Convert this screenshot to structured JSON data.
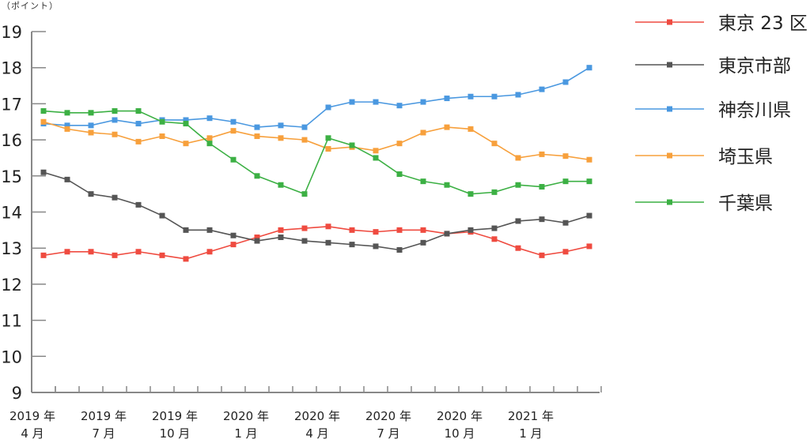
{
  "chart_data": {
    "type": "line",
    "ylabel": "（ポイント）",
    "ylim": [
      9,
      19
    ],
    "yticks": [
      "9",
      "10",
      "11",
      "12",
      "13",
      "14",
      "15",
      "16",
      "17",
      "18",
      "19"
    ],
    "x": [
      "2019-04",
      "2019-05",
      "2019-06",
      "2019-07",
      "2019-08",
      "2019-09",
      "2019-10",
      "2019-11",
      "2019-12",
      "2020-01",
      "2020-02",
      "2020-03",
      "2020-04",
      "2020-05",
      "2020-06",
      "2020-07",
      "2020-08",
      "2020-09",
      "2020-10",
      "2020-11",
      "2020-12",
      "2021-01",
      "2021-02",
      "2021-03"
    ],
    "xtick_labels": [
      {
        "index": 0,
        "line1": "2019 年",
        "line2": "4 月"
      },
      {
        "index": 3,
        "line1": "2019 年",
        "line2": "7 月"
      },
      {
        "index": 6,
        "line1": "2019 年",
        "line2": "10 月"
      },
      {
        "index": 9,
        "line1": "2020 年",
        "line2": "1 月"
      },
      {
        "index": 12,
        "line1": "2020 年",
        "line2": "4 月"
      },
      {
        "index": 15,
        "line1": "2020 年",
        "line2": "7 月"
      },
      {
        "index": 18,
        "line1": "2020 年",
        "line2": "10 月"
      },
      {
        "index": 21,
        "line1": "2021 年",
        "line2": "1 月"
      }
    ],
    "legend_position": "right",
    "series": [
      {
        "name": "東京 23 区",
        "color": "#ef4b40",
        "values": [
          12.8,
          12.9,
          12.9,
          12.8,
          12.9,
          12.8,
          12.7,
          12.9,
          13.1,
          13.3,
          13.5,
          13.55,
          13.6,
          13.5,
          13.45,
          13.5,
          13.5,
          13.4,
          13.45,
          13.25,
          13.0,
          12.8,
          12.9,
          13.05
        ]
      },
      {
        "name": "東京市部",
        "color": "#555555",
        "values": [
          15.1,
          14.9,
          14.5,
          14.4,
          14.2,
          13.9,
          13.5,
          13.5,
          13.35,
          13.2,
          13.3,
          13.2,
          13.15,
          13.1,
          13.05,
          12.95,
          13.15,
          13.4,
          13.5,
          13.55,
          13.75,
          13.8,
          13.7,
          13.9
        ]
      },
      {
        "name": "神奈川県",
        "color": "#4a98e0",
        "values": [
          16.45,
          16.4,
          16.4,
          16.55,
          16.45,
          16.55,
          16.55,
          16.6,
          16.5,
          16.35,
          16.4,
          16.35,
          16.9,
          17.05,
          17.05,
          16.95,
          17.05,
          17.15,
          17.2,
          17.2,
          17.25,
          17.4,
          17.6,
          18.0
        ]
      },
      {
        "name": "埼玉県",
        "color": "#f7a03c",
        "values": [
          16.5,
          16.3,
          16.2,
          16.15,
          15.95,
          16.1,
          15.9,
          16.05,
          16.25,
          16.1,
          16.05,
          16.0,
          15.75,
          15.8,
          15.7,
          15.9,
          16.2,
          16.35,
          16.3,
          15.9,
          15.5,
          15.6,
          15.55,
          15.45
        ]
      },
      {
        "name": "千葉県",
        "color": "#3cb044",
        "values": [
          16.8,
          16.75,
          16.75,
          16.8,
          16.8,
          16.5,
          16.45,
          15.9,
          15.45,
          15.0,
          14.75,
          14.5,
          16.05,
          15.85,
          15.5,
          15.05,
          14.85,
          14.75,
          14.5,
          14.55,
          14.75,
          14.7,
          14.85,
          14.85
        ]
      }
    ]
  }
}
